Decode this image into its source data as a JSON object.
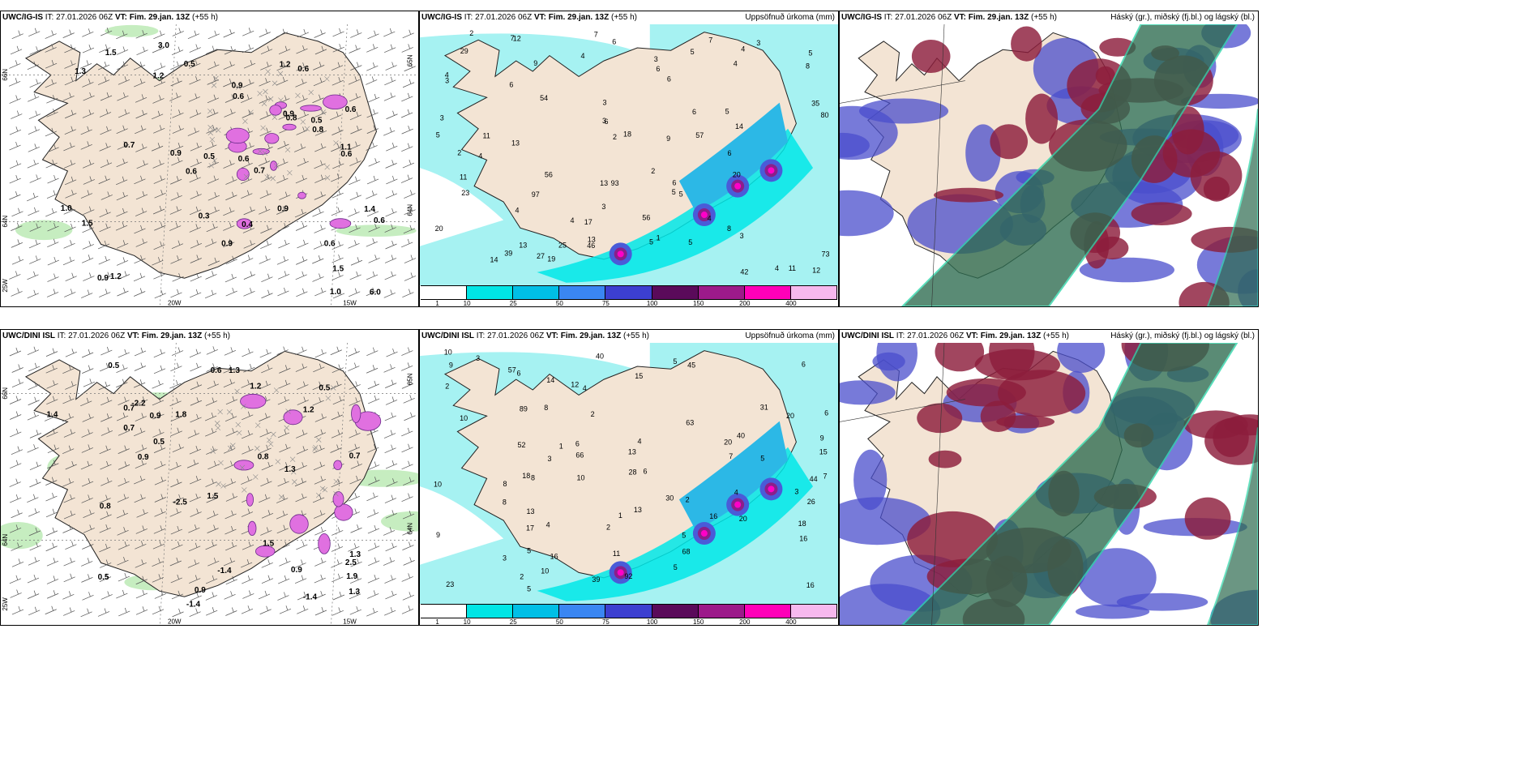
{
  "panels": [
    {
      "model": "UWC/IG-IS",
      "it_label": "IT:",
      "it_value": "27.01.2026 06Z",
      "vt_label": "VT:",
      "vt_value": "Fim. 29.jan. 13Z",
      "lead": "(+55 h)",
      "right_title": "",
      "type": "wind",
      "labels": [
        "0.5",
        "0.6",
        "0.9",
        "0.7",
        "0.9",
        "0.9",
        "0.9",
        "1.0",
        "1.4",
        "1.5",
        "0.6",
        "0.6",
        "6.0",
        "1.1",
        "0.8",
        "0.6",
        "0.6",
        "0.6",
        "1.5",
        "1.2",
        "3.0",
        "0.7",
        "0.9",
        "0.8",
        "1.0",
        "0.6",
        "0.5",
        "0.3",
        "0.6",
        "0.9",
        "1.2",
        "1.3",
        "0.5",
        "0.4",
        "1.2",
        "1.5"
      ],
      "axis": [
        "66N",
        "64N",
        "25W",
        "20W",
        "15W",
        "65N",
        "64N"
      ]
    },
    {
      "model": "UWC/IG-IS",
      "it_label": "IT:",
      "it_value": "27.01.2026 06Z",
      "vt_label": "VT:",
      "vt_value": "Fim. 29.jan. 13Z",
      "lead": "(+55 h)",
      "right_title": "Uppsöfnuð úrkoma (mm)",
      "type": "precip",
      "labels": [
        "5",
        "6",
        "5",
        "5",
        "4",
        "4",
        "4",
        "6",
        "3",
        "3",
        "18",
        "20",
        "7",
        "3",
        "6",
        "4",
        "1",
        "2",
        "2",
        "3",
        "4",
        "3",
        "8",
        "6",
        "13",
        "2",
        "6",
        "12",
        "19",
        "5",
        "11",
        "42",
        "9",
        "14",
        "27",
        "23",
        "14",
        "29",
        "25",
        "54",
        "56",
        "57",
        "73",
        "80",
        "93",
        "97",
        "4",
        "20",
        "13",
        "13",
        "6",
        "8",
        "5",
        "6",
        "5",
        "4",
        "5",
        "3",
        "4",
        "6",
        "13",
        "39",
        "35",
        "12",
        "11",
        "11",
        "17",
        "56",
        "46",
        "3",
        "5",
        "2",
        "7",
        "4",
        "3",
        "9",
        "7"
      ],
      "colorbar": [
        "1",
        "10",
        "25",
        "50",
        "75",
        "100",
        "150",
        "200",
        "400"
      ]
    },
    {
      "model": "UWC/IG-IS",
      "it_label": "IT:",
      "it_value": "27.01.2026 06Z",
      "vt_label": "VT:",
      "vt_value": "Fim. 29.jan. 13Z",
      "lead": "(+55 h)",
      "right_title": "Háský (gr.), miðský (fj.bl.) og lágský (bl.)",
      "type": "clouds"
    },
    {
      "model": "UWC/DINI ISL",
      "it_label": "IT:",
      "it_value": "27.01.2026 06Z",
      "vt_label": "VT:",
      "vt_value": "Fim. 29.jan. 13Z",
      "lead": "(+55 h)",
      "right_title": "",
      "type": "wind",
      "labels": [
        "0.7",
        "0.9",
        "1.3",
        "0.7",
        "0.5",
        "0.5",
        "1.3",
        "0.8",
        "0.9",
        "0.5",
        "1.3",
        "1.2",
        "1.5",
        "2.5",
        "0.8",
        "-1.4",
        "-1.4",
        "-2.2",
        "-2.5",
        "1.9",
        "0.7",
        "1.5",
        "1.8",
        "-1.4",
        "1.3",
        "0.9",
        "0.5",
        "0.6",
        "1.4",
        "1.2",
        "0.9"
      ],
      "axis": [
        "66N",
        "64N",
        "25W",
        "20W",
        "15W",
        "65N",
        "64N"
      ]
    },
    {
      "model": "UWC/DINI ISL",
      "it_label": "IT:",
      "it_value": "27.01.2026 06Z",
      "vt_label": "VT:",
      "vt_value": "Fim. 29.jan. 13Z",
      "lead": "(+55 h)",
      "right_title": "Uppsöfnuð úrkoma (mm)",
      "type": "precip",
      "labels": [
        "9",
        "10",
        "10",
        "6",
        "6",
        "5",
        "4",
        "4",
        "23",
        "16",
        "17",
        "6",
        "5",
        "8",
        "1",
        "1",
        "2",
        "3",
        "8",
        "6",
        "9",
        "11",
        "10",
        "18",
        "8",
        "13",
        "13",
        "20",
        "39",
        "12",
        "30",
        "14",
        "20",
        "26",
        "28",
        "52",
        "57",
        "66",
        "68",
        "63",
        "89",
        "92",
        "2",
        "2",
        "3",
        "4",
        "5",
        "5",
        "5",
        "10",
        "7",
        "8",
        "2",
        "3",
        "4",
        "2",
        "16",
        "13",
        "31",
        "40",
        "40",
        "44",
        "45",
        "18",
        "20",
        "15",
        "16",
        "15",
        "7",
        "6",
        "5",
        "3",
        "9",
        "10",
        "16"
      ],
      "colorbar": [
        "1",
        "10",
        "25",
        "50",
        "75",
        "100",
        "150",
        "200",
        "400"
      ]
    },
    {
      "model": "UWC/DINI ISL",
      "it_label": "IT:",
      "it_value": "27.01.2026 06Z",
      "vt_label": "VT:",
      "vt_value": "Fim. 29.jan. 13Z",
      "lead": "(+55 h)",
      "right_title": "Háský (gr.), miðský (fj.bl.) og lágský (bl.)",
      "type": "clouds"
    }
  ],
  "colors": {
    "land": "#f3e4d4",
    "sea_precip": "#a6f2f2",
    "cyan": "#00e8e8",
    "blue": "#4a5bd8",
    "purple": "#8a1f8a",
    "magenta": "#ff00c8",
    "pink": "#f8b8f0",
    "cloud_high": "#2d6b4f",
    "cloud_mid": "#8c1d3c",
    "cloud_low": "#4a4ecc",
    "wind_green": "#b8e8b0"
  },
  "colorbar_colors": [
    "#ffffff",
    "#00e5e5",
    "#00bfe6",
    "#3a86f2",
    "#3c3fd0",
    "#5a0a5a",
    "#9c1a8a",
    "#ff00b8",
    "#f7b8ee"
  ]
}
